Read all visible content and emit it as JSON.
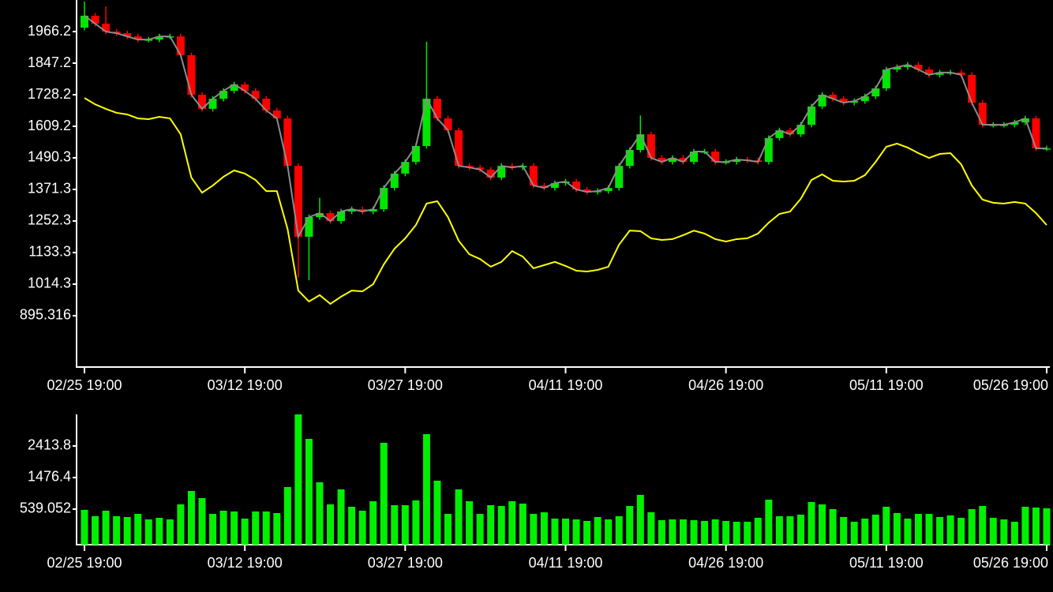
{
  "chart_data": [
    {
      "type": "candlestick",
      "categories": [
        "02/25 19:00",
        null,
        null,
        null,
        null,
        null,
        null,
        null,
        null,
        null,
        null,
        null,
        null,
        null,
        null,
        "03/12 19:00",
        null,
        null,
        null,
        null,
        null,
        null,
        null,
        null,
        null,
        null,
        null,
        null,
        null,
        null,
        "03/27 19:00",
        null,
        null,
        null,
        null,
        null,
        null,
        null,
        null,
        null,
        null,
        null,
        null,
        null,
        null,
        "04/11 19:00",
        null,
        null,
        null,
        null,
        null,
        null,
        null,
        null,
        null,
        null,
        null,
        null,
        null,
        null,
        "04/26 19:00",
        null,
        null,
        null,
        null,
        null,
        null,
        null,
        null,
        null,
        null,
        null,
        null,
        null,
        null,
        "05/11 19:00",
        null,
        null,
        null,
        null,
        null,
        null,
        null,
        null,
        null,
        null,
        null,
        null,
        null,
        null,
        "05/26 19:00"
      ],
      "open": [
        1981,
        2026,
        1996,
        1966,
        1960,
        1948,
        1936,
        1936,
        1948,
        1948,
        1877,
        1728,
        1675,
        1713,
        1743,
        1767,
        1743,
        1713,
        1669,
        1639,
        1460,
        1193,
        1267,
        1282,
        1252,
        1288,
        1297,
        1288,
        1297,
        1377,
        1431,
        1475,
        1535,
        1713,
        1639,
        1594,
        1460,
        1454,
        1446,
        1416,
        1460,
        1454,
        1460,
        1386,
        1377,
        1395,
        1401,
        1371,
        1362,
        1365,
        1377,
        1460,
        1520,
        1579,
        1490,
        1475,
        1490,
        1475,
        1514,
        1514,
        1475,
        1475,
        1484,
        1481,
        1475,
        1565,
        1594,
        1579,
        1615,
        1684,
        1728,
        1713,
        1698,
        1704,
        1722,
        1752,
        1823,
        1832,
        1841,
        1823,
        1803,
        1812,
        1812,
        1803,
        1698,
        1615,
        1615,
        1615,
        1624,
        1639,
        1526
      ],
      "high": [
        2079,
        2036,
        2061,
        1976,
        1970,
        1958,
        1946,
        1958,
        1958,
        1958,
        1887,
        1738,
        1723,
        1753,
        1777,
        1777,
        1753,
        1723,
        1679,
        1649,
        1470,
        1277,
        1340,
        1292,
        1298,
        1307,
        1307,
        1307,
        1387,
        1441,
        1485,
        1545,
        1928,
        1723,
        1649,
        1604,
        1470,
        1464,
        1456,
        1470,
        1470,
        1470,
        1470,
        1396,
        1405,
        1411,
        1411,
        1381,
        1375,
        1387,
        1470,
        1530,
        1650,
        1589,
        1500,
        1500,
        1500,
        1524,
        1524,
        1524,
        1485,
        1494,
        1494,
        1491,
        1575,
        1604,
        1604,
        1625,
        1694,
        1738,
        1738,
        1723,
        1714,
        1732,
        1762,
        1833,
        1842,
        1851,
        1851,
        1833,
        1822,
        1822,
        1822,
        1813,
        1708,
        1625,
        1625,
        1634,
        1649,
        1649,
        1536
      ],
      "low": [
        1971,
        1986,
        1956,
        1950,
        1938,
        1926,
        1926,
        1926,
        1938,
        1867,
        1718,
        1665,
        1665,
        1703,
        1733,
        1733,
        1703,
        1659,
        1629,
        1450,
        1040,
        1029,
        1257,
        1242,
        1242,
        1278,
        1278,
        1278,
        1287,
        1367,
        1421,
        1465,
        1525,
        1629,
        1584,
        1450,
        1444,
        1436,
        1406,
        1406,
        1444,
        1444,
        1376,
        1367,
        1367,
        1385,
        1361,
        1352,
        1352,
        1355,
        1367,
        1450,
        1510,
        1480,
        1465,
        1465,
        1465,
        1465,
        1504,
        1465,
        1465,
        1465,
        1471,
        1465,
        1465,
        1555,
        1569,
        1569,
        1605,
        1674,
        1703,
        1688,
        1688,
        1694,
        1712,
        1742,
        1813,
        1822,
        1813,
        1793,
        1793,
        1802,
        1793,
        1688,
        1605,
        1605,
        1605,
        1605,
        1614,
        1516,
        1516
      ],
      "close": [
        2026,
        1996,
        1966,
        1960,
        1948,
        1936,
        1936,
        1948,
        1948,
        1877,
        1728,
        1675,
        1713,
        1743,
        1767,
        1743,
        1713,
        1669,
        1639,
        1460,
        1193,
        1267,
        1282,
        1252,
        1288,
        1297,
        1288,
        1297,
        1377,
        1431,
        1475,
        1535,
        1713,
        1639,
        1594,
        1460,
        1454,
        1446,
        1416,
        1460,
        1454,
        1460,
        1386,
        1377,
        1395,
        1401,
        1371,
        1362,
        1365,
        1377,
        1460,
        1520,
        1579,
        1490,
        1475,
        1490,
        1475,
        1514,
        1514,
        1475,
        1475,
        1484,
        1481,
        1475,
        1565,
        1594,
        1579,
        1615,
        1684,
        1728,
        1713,
        1698,
        1704,
        1722,
        1752,
        1823,
        1832,
        1841,
        1823,
        1803,
        1812,
        1812,
        1803,
        1698,
        1615,
        1615,
        1615,
        1624,
        1639,
        1526,
        1526
      ],
      "up_color": "#00e600",
      "down_color": "#ff0000",
      "close_line_color": "#8c8c8c",
      "series": [
        {
          "color": "#ffff00",
          "values": [
            1716,
            1692,
            1675,
            1660,
            1654,
            1639,
            1636,
            1645,
            1639,
            1579,
            1416,
            1359,
            1386,
            1419,
            1443,
            1431,
            1407,
            1365,
            1365,
            1222,
            990,
            949,
            973,
            940,
            967,
            990,
            987,
            1014,
            1089,
            1148,
            1187,
            1237,
            1318,
            1327,
            1267,
            1178,
            1127,
            1109,
            1080,
            1098,
            1139,
            1118,
            1074,
            1086,
            1098,
            1083,
            1065,
            1062,
            1068,
            1080,
            1163,
            1216,
            1214,
            1187,
            1181,
            1184,
            1199,
            1216,
            1205,
            1184,
            1175,
            1184,
            1187,
            1205,
            1246,
            1279,
            1288,
            1336,
            1407,
            1428,
            1404,
            1401,
            1404,
            1425,
            1475,
            1532,
            1544,
            1529,
            1508,
            1490,
            1505,
            1508,
            1466,
            1386,
            1333,
            1321,
            1318,
            1324,
            1318,
            1282,
            1237
          ]
        }
      ],
      "ylim": [
        701.9,
        2085.2
      ],
      "yticks": [
        895.316,
        1014.3,
        1133.3,
        1252.3,
        1371.3,
        1490.3,
        1609.2,
        1728.2,
        1847.2,
        1966.2
      ]
    },
    {
      "type": "bar",
      "categories": [
        "02/25 19:00",
        null,
        null,
        null,
        null,
        null,
        null,
        null,
        null,
        null,
        null,
        null,
        null,
        null,
        null,
        "03/12 19:00",
        null,
        null,
        null,
        null,
        null,
        null,
        null,
        null,
        null,
        null,
        null,
        null,
        null,
        null,
        "03/27 19:00",
        null,
        null,
        null,
        null,
        null,
        null,
        null,
        null,
        null,
        null,
        null,
        null,
        null,
        null,
        "04/11 19:00",
        null,
        null,
        null,
        null,
        null,
        null,
        null,
        null,
        null,
        null,
        null,
        null,
        null,
        null,
        "04/26 19:00",
        null,
        null,
        null,
        null,
        null,
        null,
        null,
        null,
        null,
        null,
        null,
        null,
        null,
        null,
        "05/11 19:00",
        null,
        null,
        null,
        null,
        null,
        null,
        null,
        null,
        null,
        null,
        null,
        null,
        null,
        null,
        "05/26 19:00"
      ],
      "values": [
        516,
        328,
        492,
        328,
        305,
        398,
        234,
        281,
        234,
        680,
        1078,
        867,
        398,
        492,
        469,
        258,
        469,
        469,
        422,
        1195,
        3351,
        2625,
        1336,
        680,
        1125,
        609,
        492,
        773,
        2508,
        656,
        656,
        797,
        2765,
        1383,
        398,
        1125,
        773,
        398,
        656,
        633,
        773,
        703,
        398,
        445,
        258,
        258,
        234,
        188,
        305,
        234,
        328,
        633,
        961,
        445,
        211,
        234,
        234,
        211,
        188,
        234,
        188,
        164,
        164,
        281,
        820,
        328,
        328,
        375,
        750,
        680,
        539,
        305,
        164,
        258,
        375,
        609,
        422,
        258,
        398,
        398,
        305,
        352,
        281,
        539,
        633,
        281,
        234,
        164,
        609,
        586,
        563
      ],
      "color": "#00f000",
      "ylim": [
        -515.6,
        3351.2
      ],
      "yticks": [
        539.052,
        1476.4,
        2413.8
      ]
    }
  ]
}
